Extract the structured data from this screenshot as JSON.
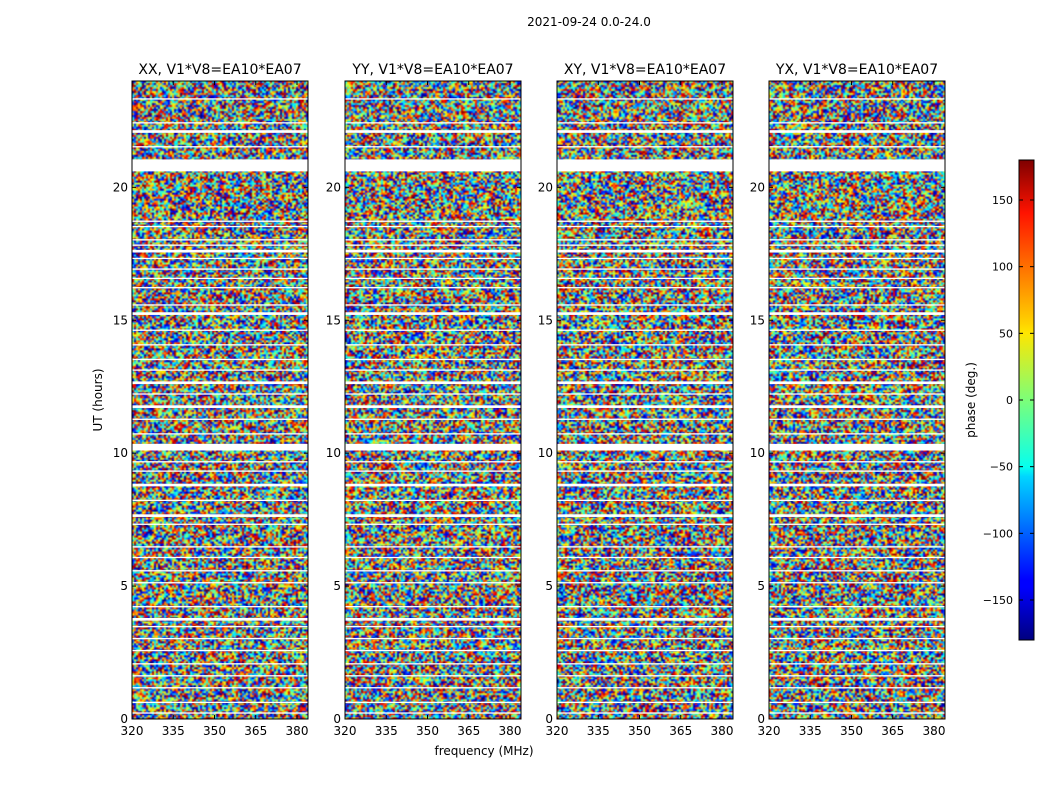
{
  "figure": {
    "suptitle": "2021-09-24 0.0-24.0"
  },
  "chart_data": {
    "type": "heatmap",
    "colormap": "jet",
    "xlabel": "frequency (MHz)",
    "ylabel": "UT (hours)",
    "xlim": [
      320,
      384
    ],
    "ylim": [
      0,
      24
    ],
    "xticks": [
      320,
      335,
      350,
      365,
      380
    ],
    "yticks": [
      0,
      5,
      10,
      15,
      20
    ],
    "panels": [
      {
        "title": "XX, V1*V8=EA10*EA07"
      },
      {
        "title": "YY, V1*V8=EA10*EA07"
      },
      {
        "title": "XY, V1*V8=EA10*EA07"
      },
      {
        "title": "YX, V1*V8=EA10*EA07"
      }
    ],
    "colorbar": {
      "label": "phase (deg.)",
      "range": [
        -180,
        180
      ],
      "ticks": [
        -150,
        -100,
        -50,
        0,
        50,
        100,
        150
      ]
    },
    "flagged_utc_bands": [
      [
        0.2,
        0.25
      ],
      [
        0.6,
        0.65
      ],
      [
        1.15,
        1.2
      ],
      [
        1.6,
        1.65
      ],
      [
        2.05,
        2.1
      ],
      [
        2.55,
        2.6
      ],
      [
        3.0,
        3.05
      ],
      [
        3.45,
        3.5
      ],
      [
        3.7,
        3.8
      ],
      [
        4.2,
        4.25
      ],
      [
        5.1,
        5.15
      ],
      [
        5.55,
        5.6
      ],
      [
        6.05,
        6.1
      ],
      [
        6.45,
        6.5
      ],
      [
        7.3,
        7.35
      ],
      [
        7.6,
        7.7
      ],
      [
        8.2,
        8.25
      ],
      [
        8.75,
        8.85
      ],
      [
        9.3,
        9.35
      ],
      [
        9.65,
        9.7
      ],
      [
        10.1,
        10.35
      ],
      [
        10.7,
        10.75
      ],
      [
        11.25,
        11.3
      ],
      [
        11.7,
        11.8
      ],
      [
        12.2,
        12.25
      ],
      [
        12.6,
        12.7
      ],
      [
        13.1,
        13.15
      ],
      [
        13.5,
        13.55
      ],
      [
        14.05,
        14.1
      ],
      [
        14.6,
        14.65
      ],
      [
        15.2,
        15.3
      ],
      [
        15.55,
        15.6
      ],
      [
        16.2,
        16.25
      ],
      [
        16.55,
        16.6
      ],
      [
        16.9,
        16.95
      ],
      [
        17.3,
        17.35
      ],
      [
        17.55,
        17.65
      ],
      [
        17.8,
        17.85
      ],
      [
        18.0,
        18.05
      ],
      [
        18.5,
        18.55
      ],
      [
        18.7,
        18.75
      ],
      [
        20.6,
        21.05
      ],
      [
        21.5,
        21.55
      ],
      [
        22.05,
        22.15
      ],
      [
        22.4,
        22.45
      ],
      [
        23.3,
        23.35
      ]
    ]
  }
}
